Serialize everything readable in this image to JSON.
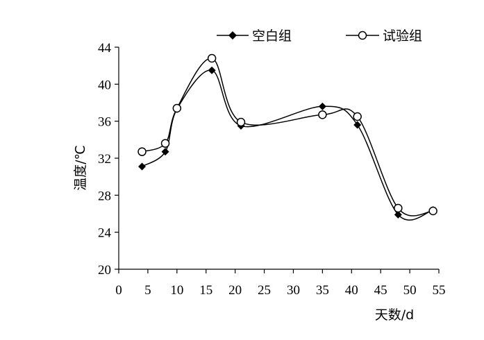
{
  "chart_data": {
    "type": "line",
    "title": "",
    "xlabel": "天数/d",
    "ylabel": "温度/℃",
    "xlim": [
      0,
      55
    ],
    "ylim": [
      20,
      44
    ],
    "xticks": [
      0,
      5,
      10,
      15,
      20,
      25,
      30,
      35,
      40,
      45,
      50,
      55
    ],
    "yticks": [
      20,
      24,
      28,
      32,
      36,
      40,
      44
    ],
    "grid": false,
    "legend_position": "top",
    "smooth": true,
    "series": [
      {
        "name": "空白组",
        "marker": "filled-diamond",
        "color": "#000000",
        "points": [
          {
            "x": 4,
            "y": 31.1
          },
          {
            "x": 8,
            "y": 32.7
          },
          {
            "x": 10,
            "y": 37.3
          },
          {
            "x": 16,
            "y": 41.5
          },
          {
            "x": 21,
            "y": 35.5
          },
          {
            "x": 35,
            "y": 37.6
          },
          {
            "x": 41,
            "y": 35.6
          },
          {
            "x": 48,
            "y": 25.9
          },
          {
            "x": 54,
            "y": 26.4
          }
        ]
      },
      {
        "name": "试验组",
        "marker": "open-circle",
        "color": "#000000",
        "points": [
          {
            "x": 4,
            "y": 32.7
          },
          {
            "x": 8,
            "y": 33.6
          },
          {
            "x": 10,
            "y": 37.4
          },
          {
            "x": 16,
            "y": 42.8
          },
          {
            "x": 21,
            "y": 35.9
          },
          {
            "x": 35,
            "y": 36.7
          },
          {
            "x": 41,
            "y": 36.5
          },
          {
            "x": 48,
            "y": 26.6
          },
          {
            "x": 54,
            "y": 26.3
          }
        ]
      }
    ]
  }
}
